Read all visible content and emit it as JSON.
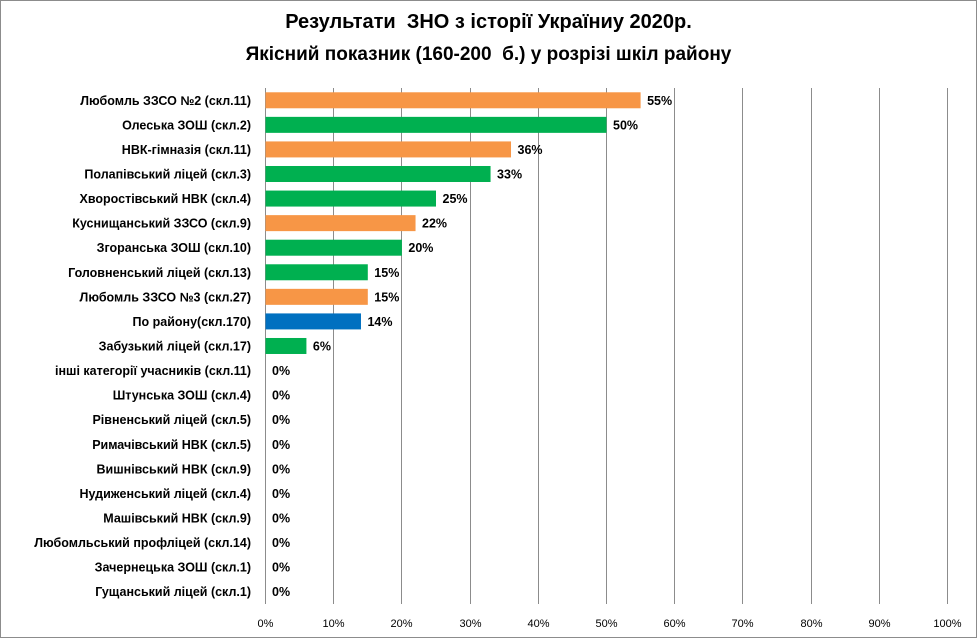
{
  "chart_data": {
    "type": "bar",
    "orientation": "horizontal",
    "title": "Результати  ЗНО з історії Україниу 2020р.",
    "subtitle": "Якісний показник (160-200  б.) у розрізі шкіл району",
    "xlabel": "",
    "ylabel": "",
    "xlim": [
      0,
      100
    ],
    "x_ticks": [
      "0%",
      "10%",
      "20%",
      "30%",
      "40%",
      "50%",
      "60%",
      "70%",
      "80%",
      "90%",
      "100%"
    ],
    "grid": "vertical",
    "legend": "none",
    "categories": [
      "Любомль ЗЗСО №2 (скл.11)",
      "Олеська ЗОШ (скл.2)",
      "НВК-гімназія (скл.11)",
      "Полапівський ліцей (скл.3)",
      "Хворостівський НВК (скл.4)",
      "Куснищанський ЗЗСО (скл.9)",
      "Згоранська ЗОШ (скл.10)",
      "Головненський ліцей (скл.13)",
      "Любомль ЗЗСО №3 (скл.27)",
      "По району(скл.170)",
      "Забузький ліцей (скл.17)",
      "інші категорії учасників (скл.11)",
      "Штунська ЗОШ (скл.4)",
      "Рівненський ліцей (скл.5)",
      "Римачівський НВК (скл.5)",
      "Вишнівський НВК (скл.9)",
      "Нудиженський ліцей (скл.4)",
      "Машівський НВК (скл.9)",
      "Любомльський профліцей (скл.14)",
      "Зачернецька ЗОШ (скл.1)",
      "Гущанський ліцей (скл.1)"
    ],
    "values": [
      55,
      50,
      36,
      33,
      25,
      22,
      20,
      15,
      15,
      14,
      6,
      0,
      0,
      0,
      0,
      0,
      0,
      0,
      0,
      0,
      0
    ],
    "value_labels": [
      "55%",
      "50%",
      "36%",
      "33%",
      "25%",
      "22%",
      "20%",
      "15%",
      "15%",
      "14%",
      "6%",
      "0%",
      "0%",
      "0%",
      "0%",
      "0%",
      "0%",
      "0%",
      "0%",
      "0%",
      "0%"
    ],
    "bar_colors": [
      "#f79646",
      "#00b050",
      "#f79646",
      "#00b050",
      "#00b050",
      "#f79646",
      "#00b050",
      "#00b050",
      "#f79646",
      "#0070c0",
      "#00b050",
      "#00b050",
      "#00b050",
      "#00b050",
      "#00b050",
      "#00b050",
      "#00b050",
      "#00b050",
      "#00b050",
      "#00b050",
      "#00b050"
    ],
    "colors": {
      "orange": "#f79646",
      "green": "#00b050",
      "blue": "#0070c0",
      "gridline": "#8c8c8c"
    }
  }
}
